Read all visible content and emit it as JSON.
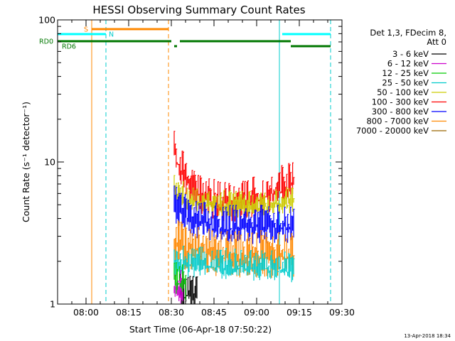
{
  "chart_data": {
    "type": "line",
    "title": "HESSI Observing Summary Count Rates",
    "xlabel": "Start Time (06-Apr-18 07:50:22)",
    "ylabel": "Count Rate (s⁻¹ detector⁻¹)",
    "yscale": "log",
    "ylim": [
      1,
      100
    ],
    "xlim": [
      "07:50",
      "09:30"
    ],
    "x_ticks": [
      "08:00",
      "08:15",
      "08:30",
      "08:45",
      "09:00",
      "09:15",
      "09:30"
    ],
    "y_ticks": [
      "1",
      "10",
      "100"
    ],
    "legend": {
      "placement": "right",
      "header": [
        "Det 1,3, FDecim 8,",
        "Att 0"
      ],
      "entries": [
        {
          "label": "3 - 6 keV",
          "color": "#000000"
        },
        {
          "label": "6 - 12 keV",
          "color": "#cc00cc"
        },
        {
          "label": "12 - 25 keV",
          "color": "#00cc00"
        },
        {
          "label": "25 - 50 keV",
          "color": "#00cccc"
        },
        {
          "label": "50 - 100 keV",
          "color": "#cccc00"
        },
        {
          "label": "100 - 300 keV",
          "color": "#ff0000"
        },
        {
          "label": "300 - 800 keV",
          "color": "#0000ff"
        },
        {
          "label": "800 - 7000 keV",
          "color": "#ff8800"
        },
        {
          "label": "7000 - 20000 keV",
          "color": "#996600"
        }
      ]
    },
    "flag_bars": [
      {
        "label": "S",
        "color": "#ff8800",
        "segments": [
          [
            "08:02",
            "08:29"
          ]
        ]
      },
      {
        "label": "N",
        "color": "#00ffff",
        "segments": [
          [
            "07:50",
            "08:07"
          ],
          [
            "09:09",
            "09:26"
          ]
        ]
      },
      {
        "label": "RD0",
        "color": "#007700",
        "segments": [
          [
            "07:50",
            "08:30"
          ],
          [
            "08:33",
            "09:12"
          ]
        ]
      },
      {
        "label": "RD6",
        "color": "#007700",
        "segments": [
          [
            "08:31",
            "08:32"
          ],
          [
            "09:12",
            "09:26"
          ]
        ]
      }
    ],
    "vertical_markers": [
      {
        "x": "08:02",
        "color": "#ff8800",
        "style": "solid"
      },
      {
        "x": "08:07",
        "color": "#00cccc",
        "style": "dashed"
      },
      {
        "x": "08:29",
        "color": "#ff8800",
        "style": "dashed"
      },
      {
        "x": "09:08",
        "color": "#00cccc",
        "style": "solid"
      },
      {
        "x": "09:26",
        "color": "#00cccc",
        "style": "dashed"
      }
    ],
    "series": [
      {
        "name": "100 - 300 keV",
        "color": "#ff0000",
        "x_range": [
          "08:31",
          "09:13"
        ],
        "profile": [
          [
            0,
            14.5
          ],
          [
            0.03,
            12.0
          ],
          [
            0.07,
            10.0
          ],
          [
            0.11,
            8.6
          ],
          [
            0.16,
            7.6
          ],
          [
            0.22,
            7.0
          ],
          [
            0.29,
            6.6
          ],
          [
            0.36,
            6.2
          ],
          [
            0.45,
            6.1
          ],
          [
            0.55,
            6.2
          ],
          [
            0.65,
            6.4
          ],
          [
            0.75,
            6.8
          ],
          [
            0.85,
            7.4
          ],
          [
            0.92,
            7.9
          ],
          [
            1,
            8.3
          ]
        ],
        "spread": 0.45
      },
      {
        "name": "50 - 100 keV",
        "color": "#cccc00",
        "x_range": [
          "08:31",
          "09:13"
        ],
        "profile": [
          [
            0,
            7.0
          ],
          [
            0.1,
            6.1
          ],
          [
            0.3,
            5.6
          ],
          [
            0.6,
            5.4
          ],
          [
            1,
            5.8
          ]
        ],
        "spread": 0.3
      },
      {
        "name": "300 - 800 keV",
        "color": "#0000ff",
        "x_range": [
          "08:31",
          "09:13"
        ],
        "profile": [
          [
            0,
            5.8
          ],
          [
            0.05,
            5.2
          ],
          [
            0.15,
            4.6
          ],
          [
            0.3,
            4.3
          ],
          [
            0.5,
            4.1
          ],
          [
            0.7,
            4.1
          ],
          [
            1,
            4.2
          ]
        ],
        "spread": 0.42
      },
      {
        "name": "800 - 7000 keV",
        "color": "#ff8800",
        "x_range": [
          "08:31",
          "09:13"
        ],
        "profile": [
          [
            0,
            3.4
          ],
          [
            0.1,
            3.0
          ],
          [
            0.3,
            2.7
          ],
          [
            0.6,
            2.6
          ],
          [
            1,
            2.7
          ]
        ],
        "spread": 0.5
      },
      {
        "name": "25 - 50 keV",
        "color": "#00cccc",
        "x_range": [
          "08:31",
          "09:13"
        ],
        "profile": [
          [
            0,
            2.2
          ],
          [
            1,
            2.0
          ]
        ],
        "spread": 0.35
      },
      {
        "name": "3 - 6 keV",
        "color": "#000000",
        "x_range": [
          "08:33",
          "08:39"
        ],
        "profile": [
          [
            0,
            1.4
          ],
          [
            1,
            1.3
          ]
        ],
        "spread": 0.4
      },
      {
        "name": "6 - 12 keV",
        "color": "#cc00cc",
        "x_range": [
          "08:31",
          "08:34"
        ],
        "profile": [
          [
            0,
            1.6
          ],
          [
            1,
            1.5
          ]
        ],
        "spread": 0.4
      },
      {
        "name": "12 - 25 keV",
        "color": "#00cc00",
        "x_range": [
          "08:31",
          "08:35"
        ],
        "profile": [
          [
            0,
            1.8
          ],
          [
            1,
            1.6
          ]
        ],
        "spread": 0.4
      }
    ]
  },
  "footer": {
    "timestamp": "13-Apr-2018 18:34"
  }
}
